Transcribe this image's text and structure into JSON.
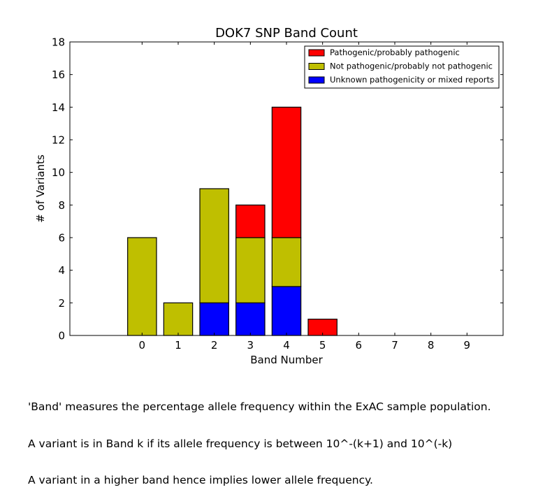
{
  "chart_data": {
    "type": "bar",
    "stacked": true,
    "title": "DOK7 SNP Band Count",
    "xlabel": "Band Number",
    "ylabel": "# of Variants",
    "categories": [
      "0",
      "1",
      "2",
      "3",
      "4",
      "5",
      "6",
      "7",
      "8",
      "9"
    ],
    "xlim": [
      -2,
      10
    ],
    "ylim": [
      0,
      18
    ],
    "yticks": [
      0,
      2,
      4,
      6,
      8,
      10,
      12,
      14,
      16,
      18
    ],
    "grid": false,
    "legend_position": "top-right",
    "series": [
      {
        "name": "Unknown pathogenicity or mixed reports",
        "color": "#0000ff",
        "values": [
          0,
          0,
          2,
          2,
          3,
          0,
          0,
          0,
          0,
          0
        ]
      },
      {
        "name": "Not pathogenic/probably not pathogenic",
        "color": "#bfbf00",
        "values": [
          6,
          2,
          7,
          4,
          3,
          0,
          0,
          0,
          0,
          0
        ]
      },
      {
        "name": "Pathogenic/probably pathogenic",
        "color": "#ff0000",
        "values": [
          0,
          0,
          0,
          2,
          8,
          1,
          0,
          0,
          0,
          0
        ]
      }
    ],
    "legend_order": [
      "Pathogenic/probably pathogenic",
      "Not pathogenic/probably not pathogenic",
      "Unknown pathogenicity or mixed reports"
    ]
  },
  "caption": {
    "lines": [
      "'Band' measures the percentage allele frequency within the ExAC sample population.",
      "A variant is in Band k if its allele frequency is between 10^-(k+1) and 10^(-k)",
      "A variant in a higher band hence implies lower allele frequency."
    ]
  }
}
